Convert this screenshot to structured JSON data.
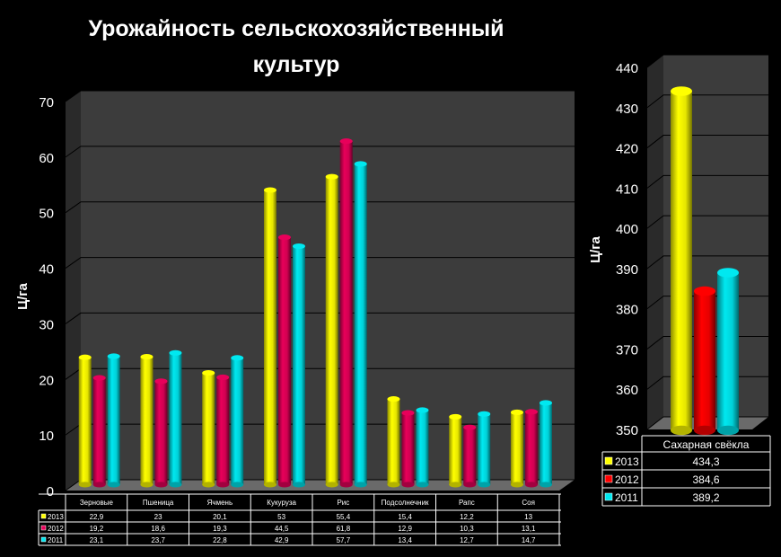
{
  "chart_data": [
    {
      "type": "bar",
      "title": "Урожайность сельскохозяйственный культур",
      "ylabel": "Ц/га",
      "ylim": [
        0,
        70
      ],
      "yticks": [
        0,
        10,
        20,
        30,
        40,
        50,
        60,
        70
      ],
      "grid": true,
      "legend": "data-table",
      "categories": [
        "Зерновые",
        "Пшеница",
        "Ячмень",
        "Кукуруза",
        "Рис",
        "Подсолнечник",
        "Рапс",
        "Соя"
      ],
      "series": [
        {
          "name": "2013",
          "color": "#ffff00",
          "values": [
            22.9,
            23,
            20.1,
            53,
            55.4,
            15.4,
            12.2,
            13
          ],
          "labels": [
            "22,9",
            "23",
            "20,1",
            "53",
            "55,4",
            "15,4",
            "12,2",
            "13"
          ]
        },
        {
          "name": "2012",
          "color": "#e8005a",
          "values": [
            19.2,
            18.6,
            19.3,
            44.5,
            61.8,
            12.9,
            10.3,
            13.1
          ],
          "labels": [
            "19,2",
            "18,6",
            "19,3",
            "44,5",
            "61,8",
            "12,9",
            "10,3",
            "13,1"
          ]
        },
        {
          "name": "2011",
          "color": "#00e8f0",
          "values": [
            23.1,
            23.7,
            22.8,
            42.9,
            57.7,
            13.4,
            12.7,
            14.7
          ],
          "labels": [
            "23,1",
            "23,7",
            "22,8",
            "42,9",
            "57,7",
            "13,4",
            "12,7",
            "14,7"
          ]
        }
      ]
    },
    {
      "type": "bar",
      "ylabel": "Ц/га",
      "ylim": [
        350,
        440
      ],
      "yticks": [
        350,
        360,
        370,
        380,
        390,
        400,
        410,
        420,
        430,
        440
      ],
      "grid": true,
      "legend": "data-table",
      "categories": [
        "Сахарная свёкла"
      ],
      "series": [
        {
          "name": "2013",
          "color": "#ffff00",
          "values": [
            434.3
          ],
          "labels": [
            "434,3"
          ]
        },
        {
          "name": "2012",
          "color": "#ff0000",
          "values": [
            384.6
          ],
          "labels": [
            "384,6"
          ]
        },
        {
          "name": "2011",
          "color": "#00e8f0",
          "values": [
            389.2
          ],
          "labels": [
            "389,2"
          ]
        }
      ]
    }
  ]
}
